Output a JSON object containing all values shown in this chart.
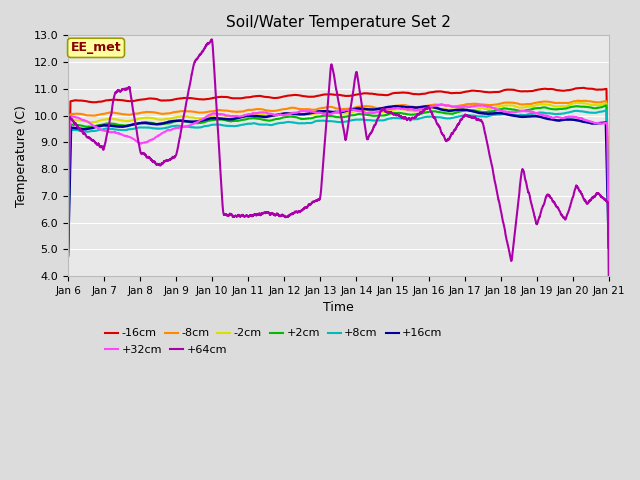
{
  "title": "Soil/Water Temperature Set 2",
  "xlabel": "Time",
  "ylabel": "Temperature (C)",
  "ylim": [
    4.0,
    13.0
  ],
  "yticks": [
    4.0,
    5.0,
    6.0,
    7.0,
    8.0,
    9.0,
    10.0,
    11.0,
    12.0,
    13.0
  ],
  "xtick_labels": [
    "Jan 6",
    "Jan 7",
    "Jan 8",
    "Jan 9",
    "Jan 10",
    "Jan 11",
    "Jan 12",
    "Jan 13",
    "Jan 14",
    "Jan 15",
    "Jan 16",
    "Jan 17",
    "Jan 18",
    "Jan 19",
    "Jan 20",
    "Jan 21"
  ],
  "annotation_text": "EE_met",
  "annotation_color": "#8B0000",
  "annotation_bg": "#FFFFA0",
  "series_order": [
    "-16cm",
    "-8cm",
    "-2cm",
    "+2cm",
    "+8cm",
    "+16cm",
    "+32cm",
    "+64cm"
  ],
  "series": {
    "-16cm": {
      "color": "#DD0000",
      "lw": 1.5
    },
    "-8cm": {
      "color": "#FF8800",
      "lw": 1.5
    },
    "-2cm": {
      "color": "#DDDD00",
      "lw": 1.5
    },
    "+2cm": {
      "color": "#00BB00",
      "lw": 1.5
    },
    "+8cm": {
      "color": "#00BBBB",
      "lw": 1.5
    },
    "+16cm": {
      "color": "#000099",
      "lw": 1.8
    },
    "+32cm": {
      "color": "#FF44FF",
      "lw": 1.5
    },
    "+64cm": {
      "color": "#AA00AA",
      "lw": 1.5
    }
  },
  "bg_color": "#DCDCDC",
  "plot_bg": "#E8E8E8",
  "grid_color": "#FFFFFF",
  "legend_ncol_row1": 6,
  "legend_ncol_row2": 2
}
